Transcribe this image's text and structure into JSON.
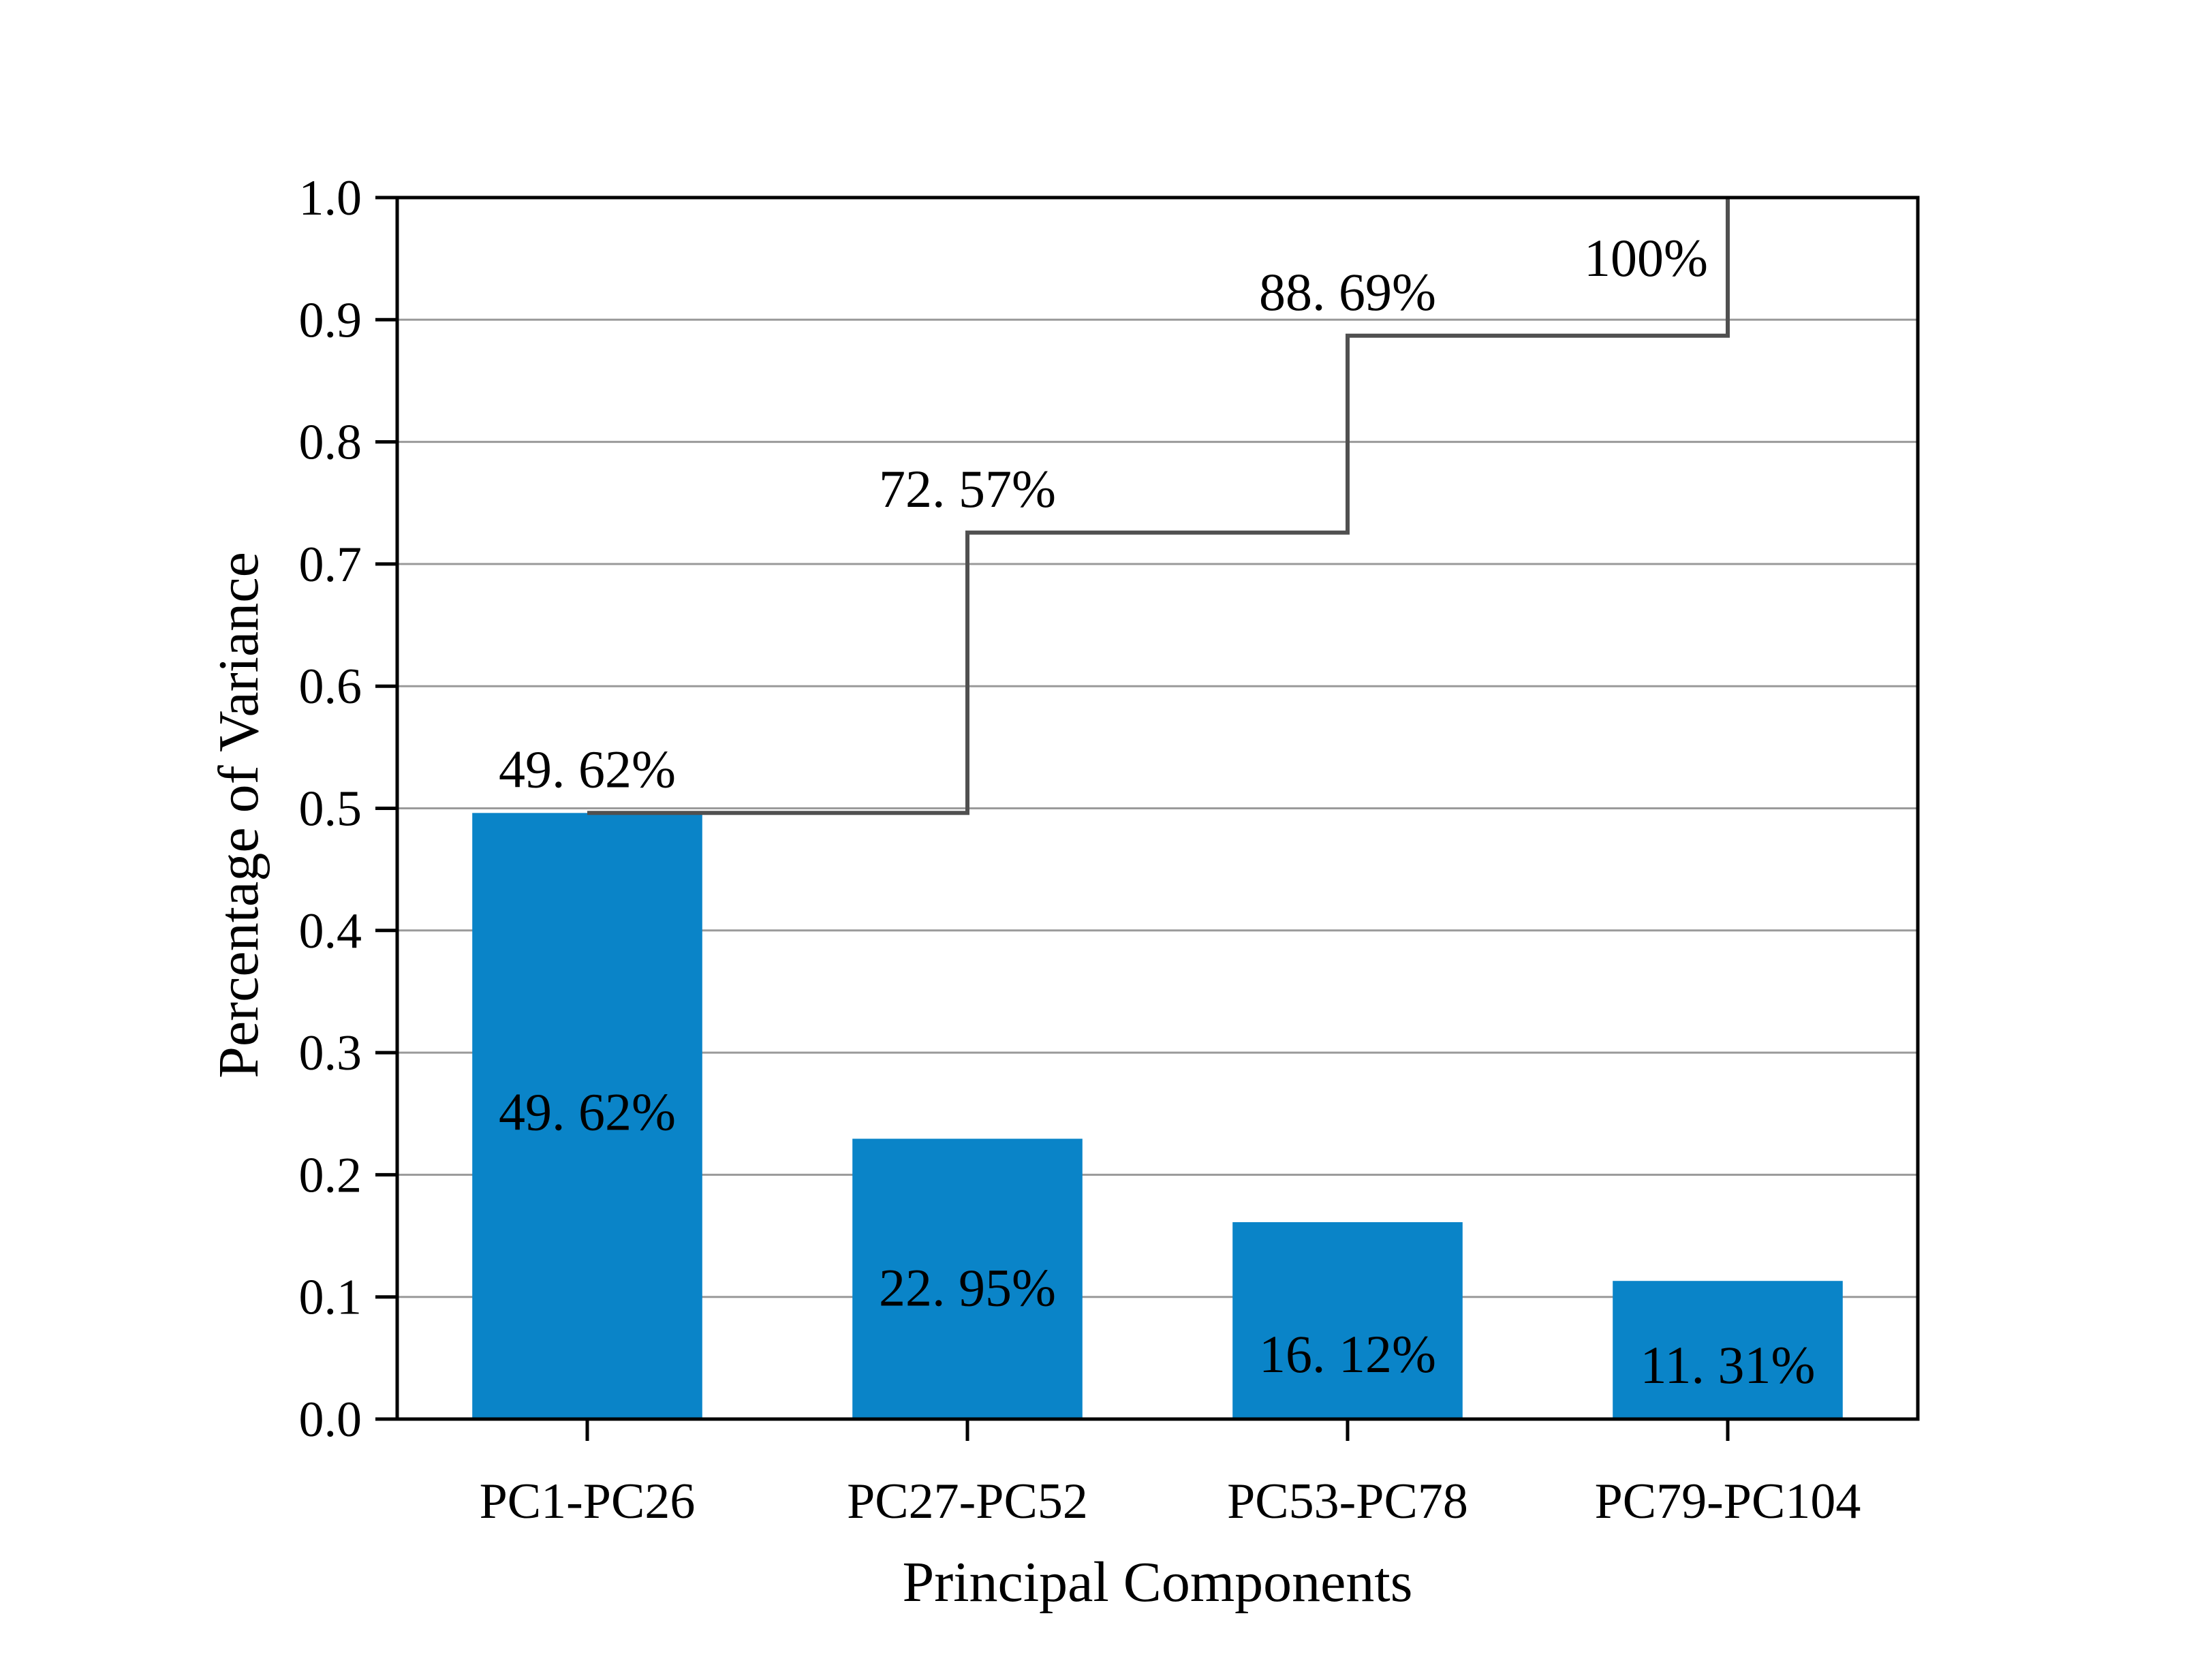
{
  "chart_data": {
    "type": "bar",
    "title": "",
    "xlabel": "Principal Components",
    "ylabel": "Percentage of Variance",
    "ylim": [
      0,
      1.0
    ],
    "yticks": [
      "0.0",
      "0.1",
      "0.2",
      "0.3",
      "0.4",
      "0.5",
      "0.6",
      "0.7",
      "0.8",
      "0.9",
      "1.0"
    ],
    "grid": "horizontal",
    "categories": [
      "PC1-PC26",
      "PC27-PC52",
      "PC53-PC78",
      "PC79-PC104"
    ],
    "values": [
      0.4962,
      0.2295,
      0.1612,
      0.1131
    ],
    "value_labels": [
      "49. 62%",
      "22. 95%",
      "16. 12%",
      "11. 31%"
    ],
    "cumulative": {
      "type": "step",
      "values": [
        0.4962,
        0.7257,
        0.8869,
        1.0
      ],
      "labels": [
        "49. 62%",
        "72. 57%",
        "88. 69%",
        "100%"
      ]
    },
    "colors": {
      "bar": "#0A84C8",
      "step_line": "#505050",
      "grid": "#9a9a9a"
    }
  }
}
